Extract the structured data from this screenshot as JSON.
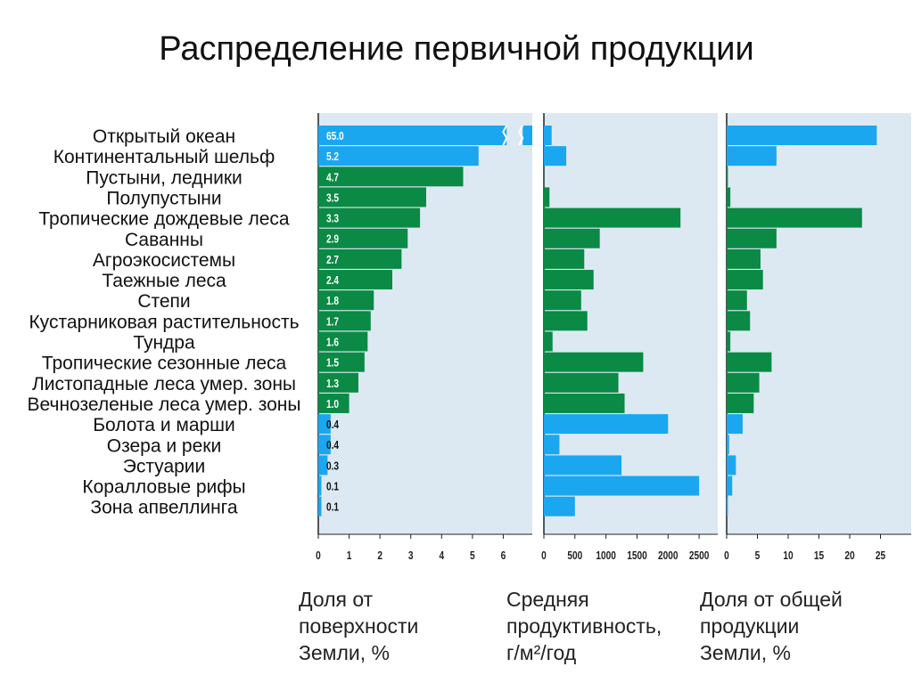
{
  "title": "Распределение первичной продукции",
  "chart_data": {
    "type": "bar",
    "orientation": "horizontal",
    "categories": [
      "Открытый океан",
      "Континентальный шельф",
      "Пустыни, ледники",
      "Полупустыни",
      "Тропические дождевые леса",
      "Саванны",
      "Агроэкосистемы",
      "Таежные леса",
      "Степи",
      "Кустарниковая растительность",
      "Тундра",
      "Тропические сезонные леса",
      "Листопадные леса умер. зоны",
      "Вечнозеленые леса умер. зоны",
      "Болота и марши",
      "Озера и реки",
      "Эстуарии",
      "Коралловые рифы",
      "Зона апвеллинга"
    ],
    "category_group": [
      "water",
      "water",
      "land",
      "land",
      "land",
      "land",
      "land",
      "land",
      "land",
      "land",
      "land",
      "land",
      "land",
      "land",
      "water",
      "water",
      "water",
      "water",
      "water"
    ],
    "group_colors": {
      "water": "#1aa7f0",
      "land": "#0a8a45"
    },
    "panels": [
      {
        "caption": [
          "Доля от",
          "поверхности",
          "Земли, %"
        ],
        "xlim": [
          0,
          7
        ],
        "xticks": [
          "0",
          "1",
          "2",
          "3",
          "4",
          "5",
          "6"
        ],
        "values": [
          65.0,
          5.2,
          4.7,
          3.5,
          3.3,
          2.9,
          2.7,
          2.4,
          1.8,
          1.7,
          1.6,
          1.5,
          1.3,
          1.0,
          0.4,
          0.4,
          0.3,
          0.1,
          0.1
        ],
        "value_labels": [
          "65.0",
          "5.2",
          "4.7",
          "3.5",
          "3.3",
          "2.9",
          "2.7",
          "2.4",
          "1.8",
          "1.7",
          "1.6",
          "1.5",
          "1.3",
          "1.0",
          "0.4",
          "0.4",
          "0.3",
          "0.1",
          "0.1"
        ],
        "axis_break": true
      },
      {
        "caption": [
          "Средняя",
          "продуктивность,",
          "г/м²/год"
        ],
        "xlim": [
          0,
          2800
        ],
        "xticks": [
          "0",
          "500",
          "1000",
          "1500",
          "2000",
          "2500"
        ],
        "values": [
          125,
          360,
          3,
          90,
          2200,
          900,
          650,
          800,
          600,
          700,
          140,
          1600,
          1200,
          1300,
          2000,
          250,
          1250,
          2500,
          500
        ]
      },
      {
        "caption": [
          "Доля от общей",
          "продукции",
          "Земли, %"
        ],
        "xlim": [
          0,
          30
        ],
        "xticks": [
          "0",
          "5",
          "10",
          "15",
          "20",
          "25"
        ],
        "values": [
          24.4,
          8.1,
          0.2,
          0.6,
          22.0,
          8.1,
          5.5,
          5.9,
          3.3,
          3.8,
          0.6,
          7.3,
          5.3,
          4.4,
          2.6,
          0.4,
          1.5,
          0.9,
          0.2
        ]
      }
    ]
  }
}
